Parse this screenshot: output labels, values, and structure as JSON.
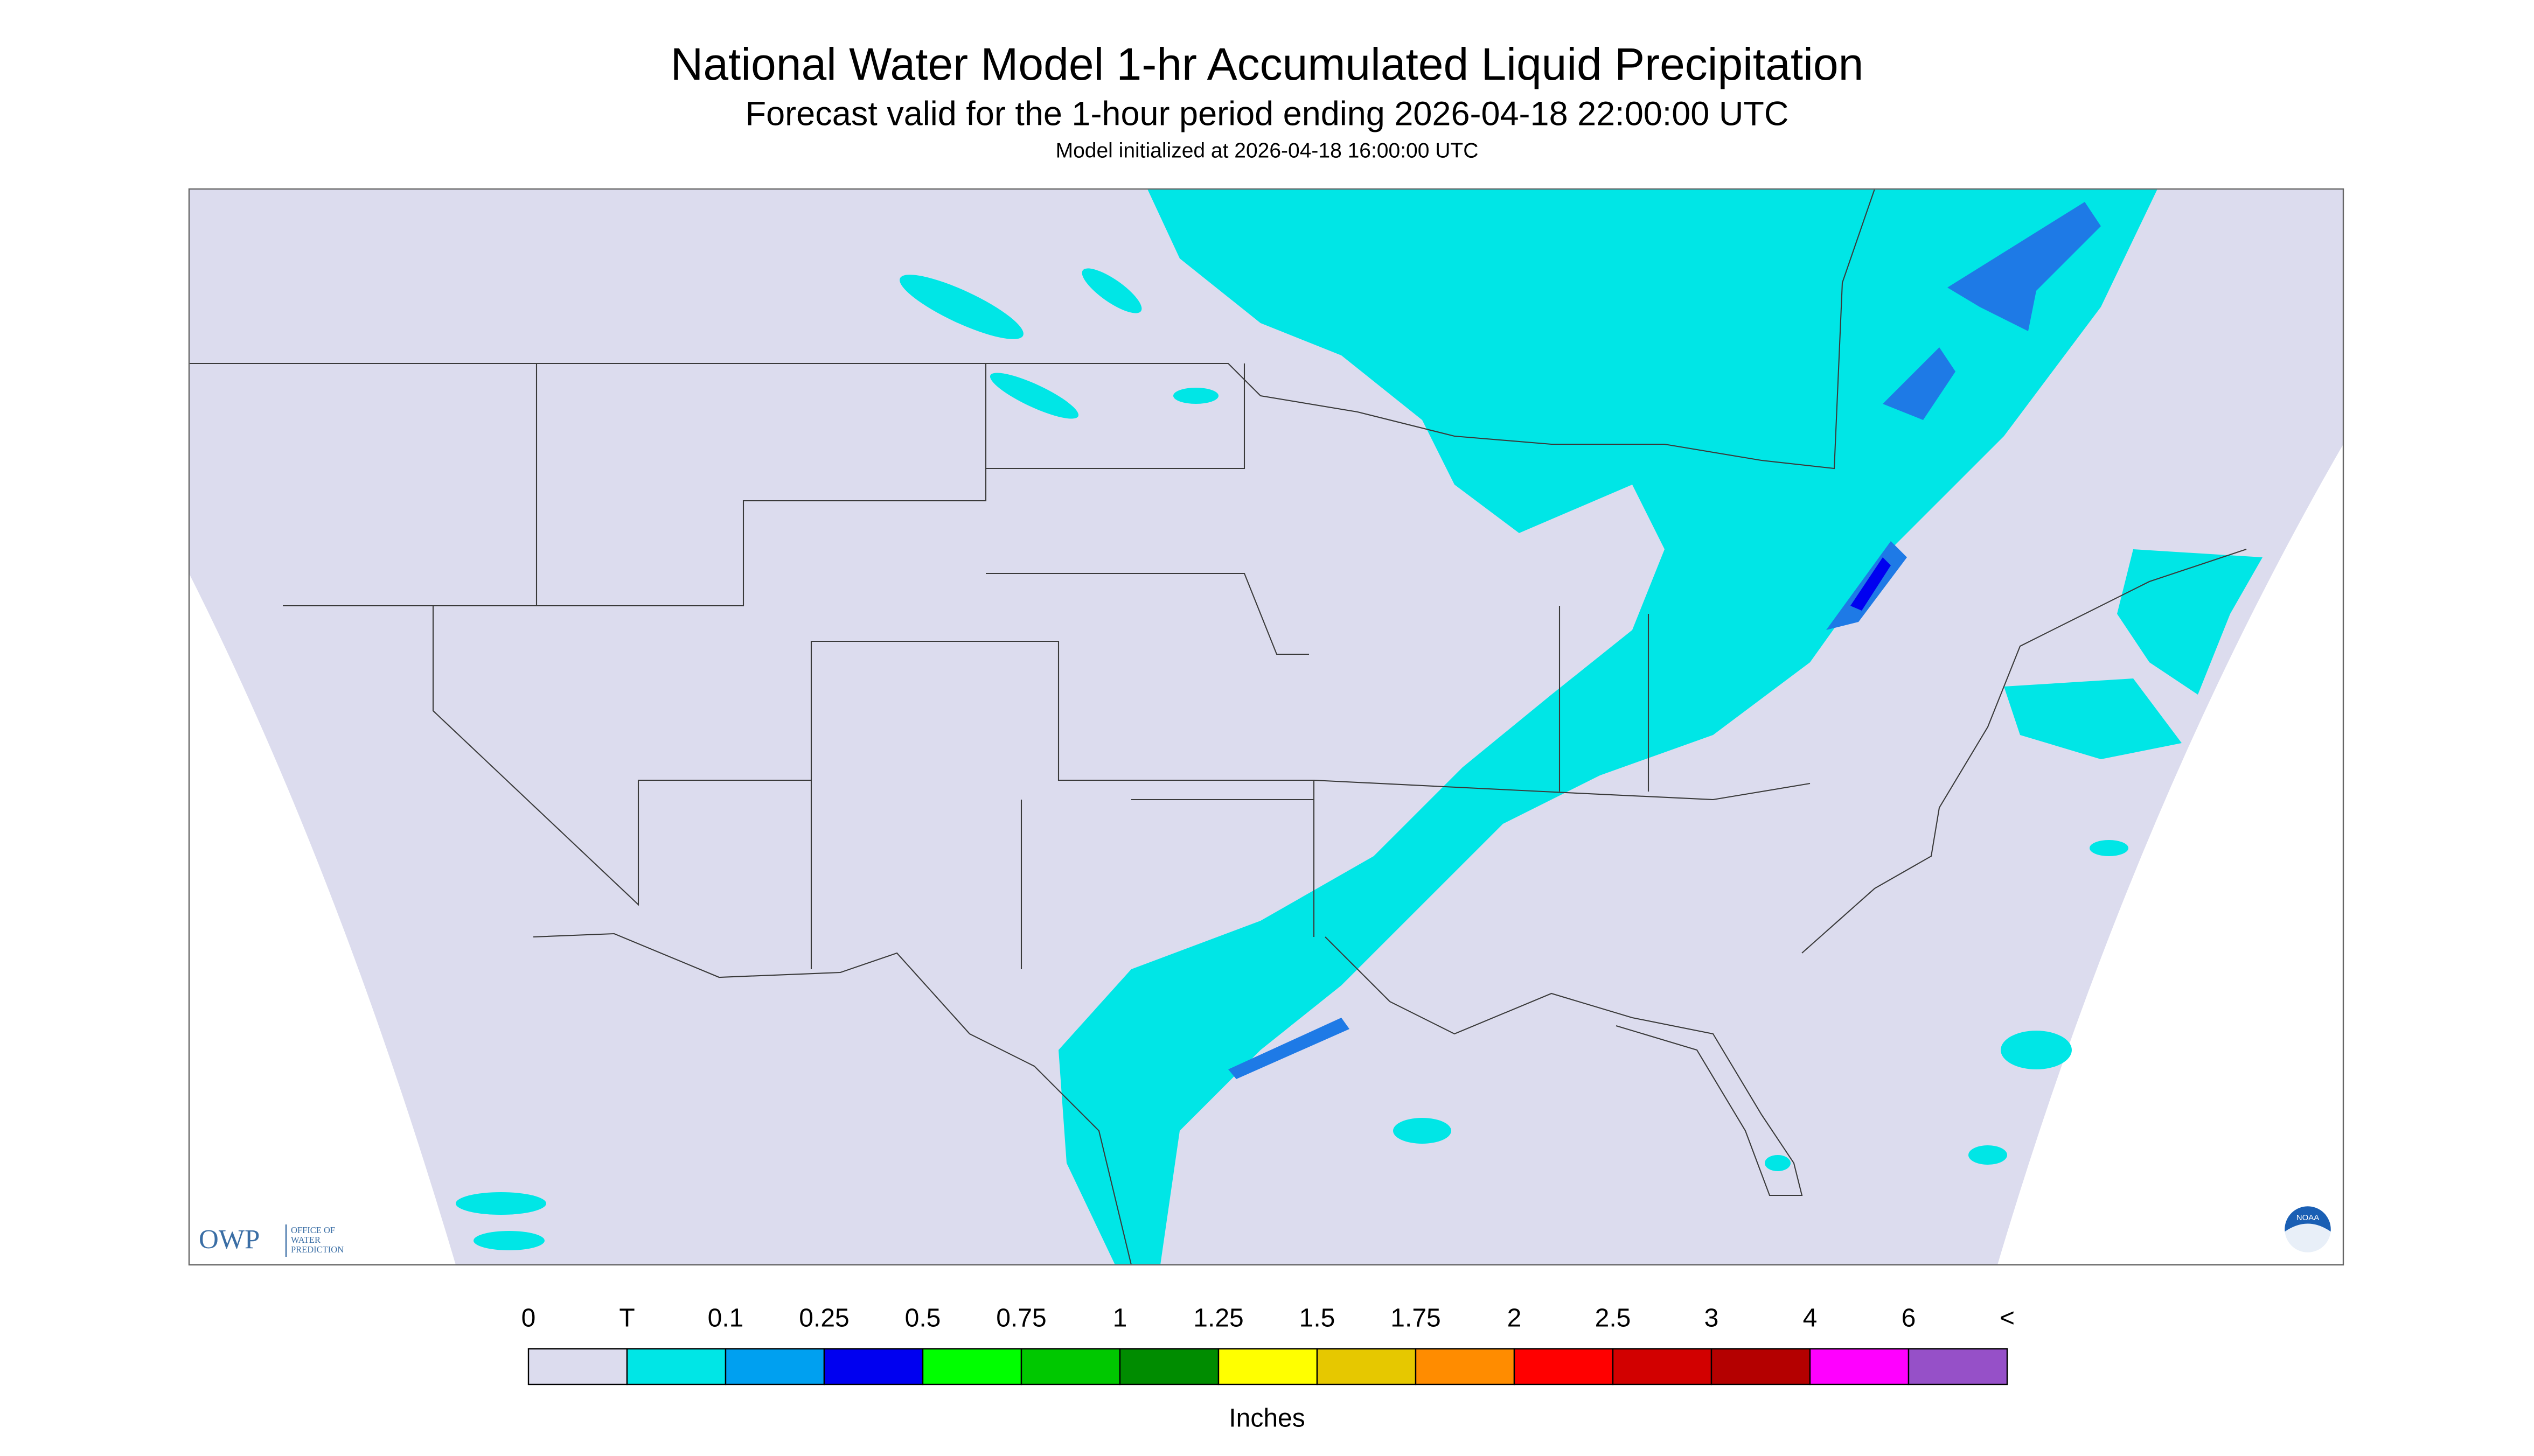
{
  "header": {
    "title": "National Water Model 1-hr Accumulated Liquid Precipitation",
    "subtitle": "Forecast valid for the 1-hour period ending 2026-04-18 22:00:00 UTC",
    "note": "Model initialized at 2026-04-18 16:00:00 UTC"
  },
  "logo": {
    "acronym": "OWP",
    "lines": [
      "OFFICE OF",
      "WATER",
      "PREDICTION"
    ],
    "badge": "NOAA"
  },
  "legend": {
    "labels": [
      "0",
      "T",
      "0.1",
      "0.25",
      "0.5",
      "0.75",
      "1",
      "1.25",
      "1.5",
      "1.75",
      "2",
      "2.5",
      "3",
      "4",
      "6",
      "<"
    ],
    "colors": [
      "#dcdcee",
      "#00e6e6",
      "#00a0f0",
      "#0000f0",
      "#00ff00",
      "#00c800",
      "#008c00",
      "#ffff00",
      "#e6c800",
      "#ff8c00",
      "#ff0000",
      "#d20000",
      "#b40000",
      "#ff00ff",
      "#9650c8"
    ],
    "unit": "Inches"
  }
}
